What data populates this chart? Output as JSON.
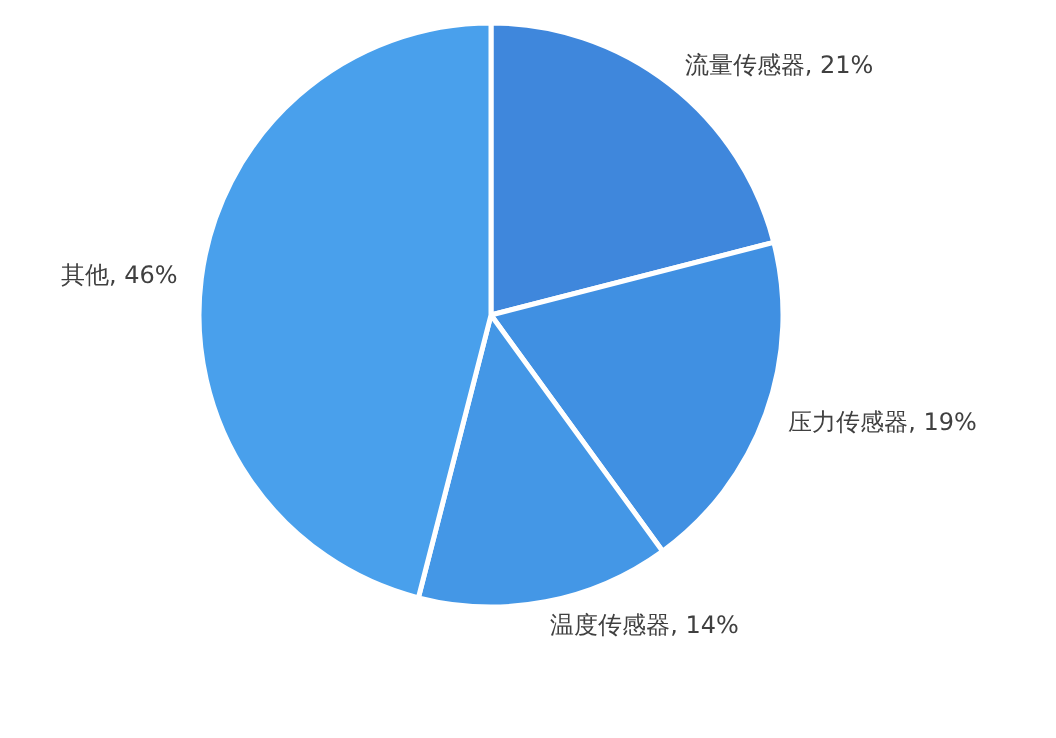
{
  "chart_data": {
    "type": "pie",
    "categories": [
      "流量传感器",
      "压力传感器",
      "温度传感器",
      "其他"
    ],
    "values": [
      21,
      19,
      14,
      46
    ],
    "colors": [
      "#3f87dc",
      "#4090e2",
      "#4497e6",
      "#49a0ec"
    ],
    "value_labels": [
      ", 21%",
      ", 19%",
      ", 14%",
      ", 46%"
    ]
  }
}
